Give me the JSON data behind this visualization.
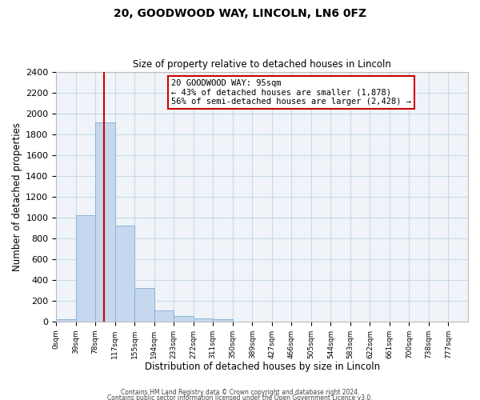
{
  "title_line1": "20, GOODWOOD WAY, LINCOLN, LN6 0FZ",
  "title_line2": "Size of property relative to detached houses in Lincoln",
  "xlabel": "Distribution of detached houses by size in Lincoln",
  "ylabel": "Number of detached properties",
  "bin_labels": [
    "0sqm",
    "39sqm",
    "78sqm",
    "117sqm",
    "155sqm",
    "194sqm",
    "233sqm",
    "272sqm",
    "311sqm",
    "350sqm",
    "389sqm",
    "427sqm",
    "466sqm",
    "505sqm",
    "544sqm",
    "583sqm",
    "622sqm",
    "661sqm",
    "700sqm",
    "738sqm",
    "777sqm"
  ],
  "bar_heights": [
    20,
    1020,
    1910,
    920,
    320,
    105,
    50,
    30,
    20,
    0,
    0,
    0,
    0,
    0,
    0,
    0,
    0,
    0,
    0,
    0
  ],
  "bar_color": "#c5d8ee",
  "bar_edge_color": "#8ab4d8",
  "annotation_title": "20 GOODWOOD WAY: 95sqm",
  "annotation_line1": "← 43% of detached houses are smaller (1,878)",
  "annotation_line2": "56% of semi-detached houses are larger (2,428) →",
  "annotation_box_color": "#ffffff",
  "annotation_box_edge": "#cc0000",
  "red_line_pct": 0.436,
  "ylim": [
    0,
    2400
  ],
  "yticks": [
    0,
    200,
    400,
    600,
    800,
    1000,
    1200,
    1400,
    1600,
    1800,
    2000,
    2200,
    2400
  ],
  "footer_line1": "Contains HM Land Registry data © Crown copyright and database right 2024.",
  "footer_line2": "Contains public sector information licensed under the Open Government Licence v3.0.",
  "bg_color": "#f0f4f8",
  "grid_color": "#c8d8e8"
}
